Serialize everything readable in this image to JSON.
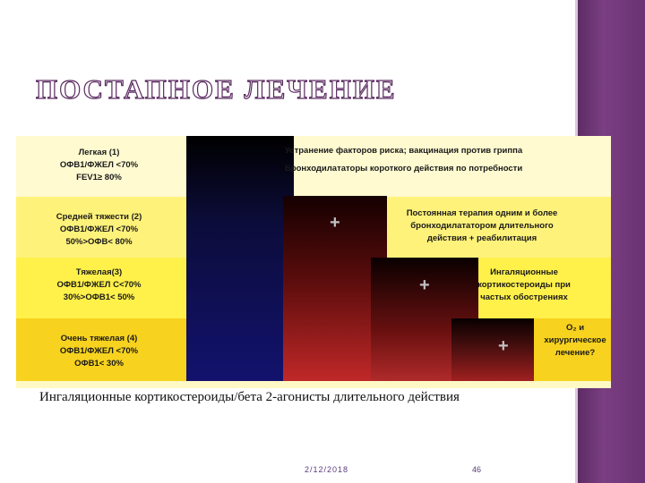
{
  "title": "ПОСТАПНОЕ ЛЕЧЕНИЕ",
  "stages": [
    {
      "name": "Легкая (1)",
      "l2": "ОФВ1/ФЖЕЛ <70%",
      "l3": "FEV1≥ 80%"
    },
    {
      "name": "Средней тяжести (2)",
      "l2": "ОФВ1/ФЖЕЛ <70%",
      "l3": "50%>ОФВ< 80%"
    },
    {
      "name": "Тяжелая(3)",
      "l2": "ОФВ1/ФЖЕЛ С<70%",
      "l3": "30%>ОФВ1< 50%"
    },
    {
      "name": "Очень тяжелая (4)",
      "l2": "ОФВ1/ФЖЕЛ <70%",
      "l3": "ОФВ1< 30%"
    }
  ],
  "therapy": {
    "t1a": "Устранение факторов риска; вакцинация против гриппа",
    "t1b": "Бронходилататоры короткого действия по потребности",
    "t2a": "Постоянная терапия одним и более",
    "t2b": "бронходилататором длительного",
    "t2c": "действия + реабилитация",
    "t3a": "Ингаляционные",
    "t3b": "кортикостероиды при",
    "t3c": "частых обострениях",
    "t4a": "O₂ и",
    "t4b": "хирургическое",
    "t4c": "лечение?"
  },
  "plus": "+",
  "caption": "Ингаляционные кортикостероиды/бета 2-агонисты длительного действия",
  "footer": {
    "date": "2/12/2018",
    "page": "46"
  }
}
